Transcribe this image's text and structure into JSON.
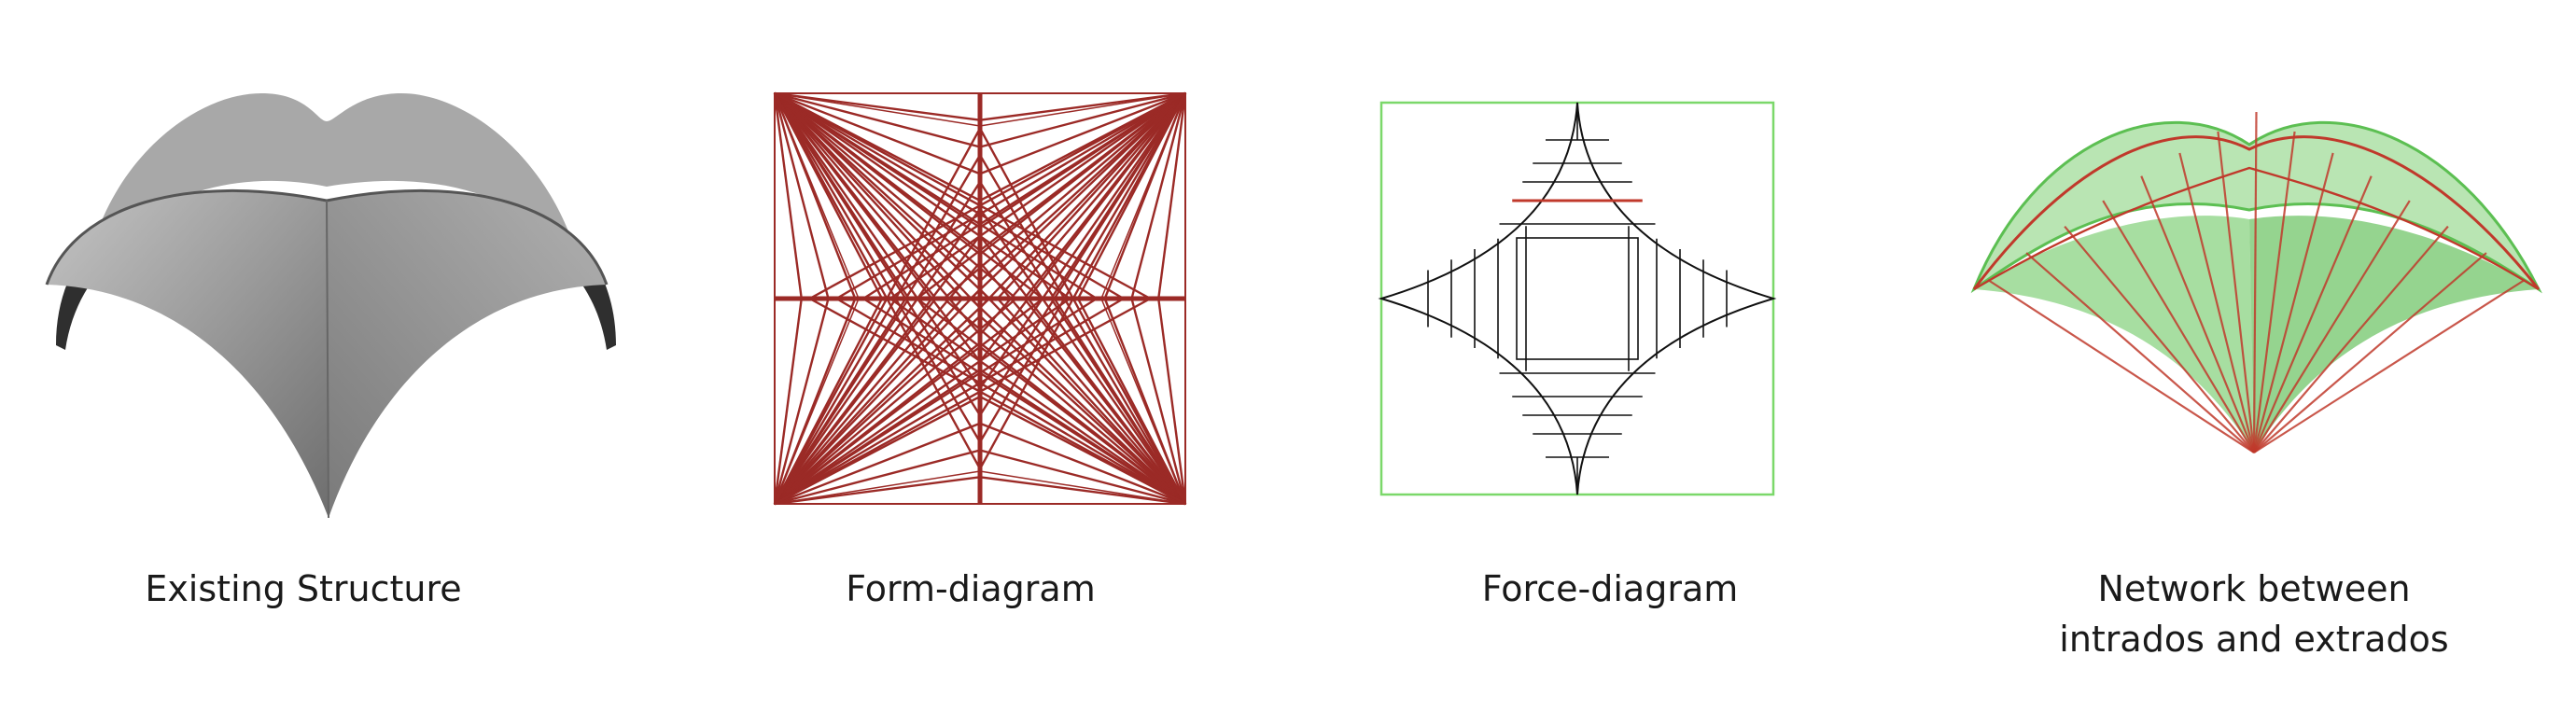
{
  "panels": [
    {
      "caption": "Existing Structure"
    },
    {
      "caption": "Form-diagram"
    },
    {
      "caption": "Force-diagram"
    },
    {
      "caption": "Network between\nintrados and extrados"
    }
  ],
  "colors": {
    "vault_light": "#b5b5b5",
    "vault_mid": "#8a8a8a",
    "vault_dark": "#3c3c3c",
    "form_lines": "#9b2a26",
    "force_lines": "#111111",
    "force_frame": "#7bd86a",
    "force_highlight": "#c0392b",
    "network_green": "#5cbf52",
    "network_red": "#c0392b"
  },
  "icons": {
    "vault_render": "groin-vault-render",
    "form_diagram": "form-diagram-drawing",
    "force_diagram": "force-diagram-drawing",
    "network_render": "thrust-network-render"
  }
}
